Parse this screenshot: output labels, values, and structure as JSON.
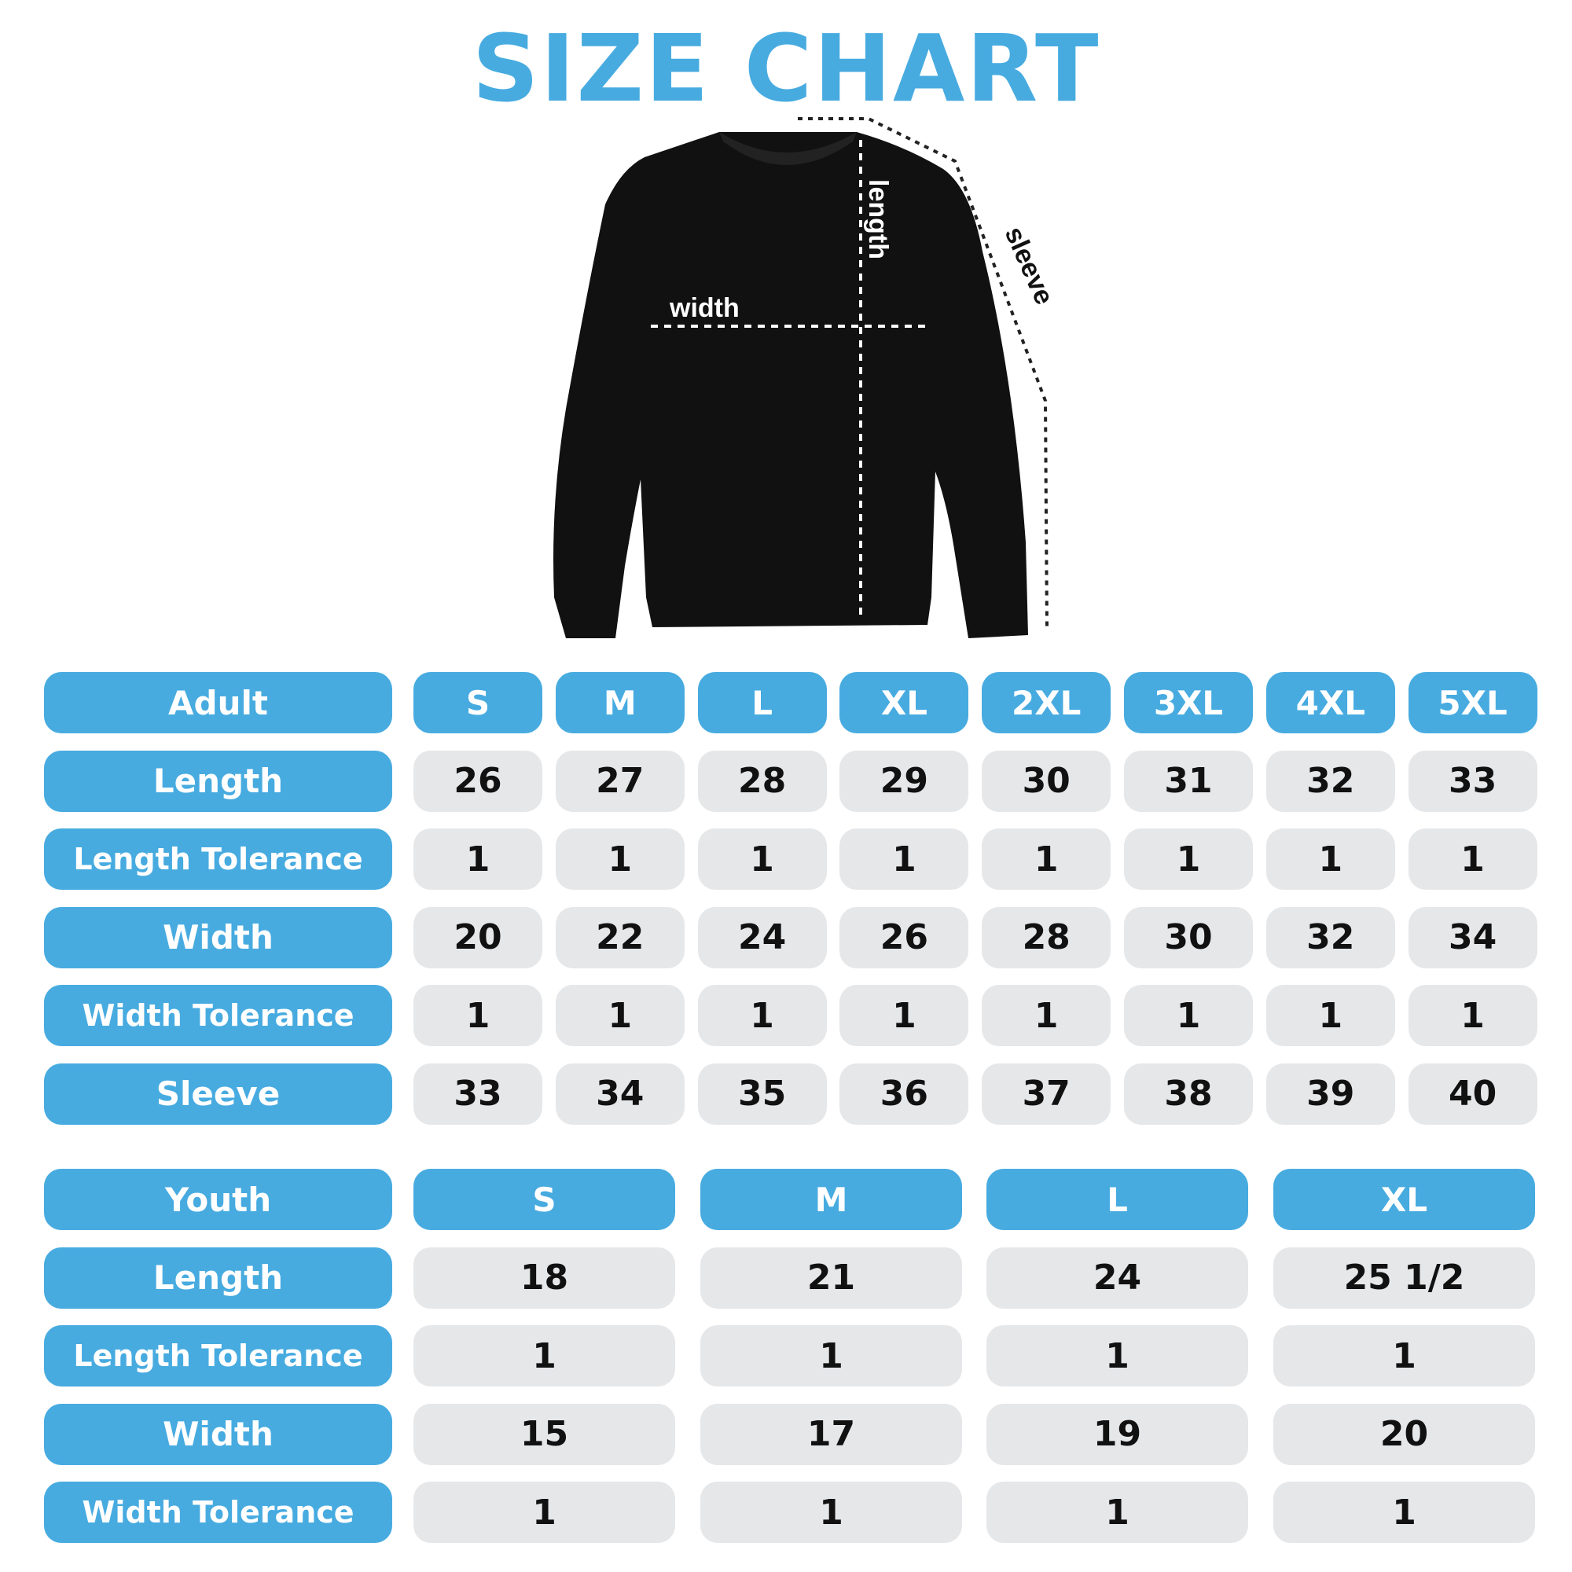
{
  "title": "SIZE CHART",
  "diagram_labels": {
    "width": "width",
    "length": "length",
    "sleeve": "sleeve"
  },
  "colors": {
    "accent": "#47abe0",
    "cell": "#e6e7e9",
    "garment": "#111111"
  },
  "adult": {
    "header": "Adult",
    "sizes": [
      "S",
      "M",
      "L",
      "XL",
      "2XL",
      "3XL",
      "4XL",
      "5XL"
    ],
    "rows": [
      {
        "label": "Length",
        "values": [
          "26",
          "27",
          "28",
          "29",
          "30",
          "31",
          "32",
          "33"
        ]
      },
      {
        "label": "Length Tolerance",
        "values": [
          "1",
          "1",
          "1",
          "1",
          "1",
          "1",
          "1",
          "1"
        ]
      },
      {
        "label": "Width",
        "values": [
          "20",
          "22",
          "24",
          "26",
          "28",
          "30",
          "32",
          "34"
        ]
      },
      {
        "label": "Width Tolerance",
        "values": [
          "1",
          "1",
          "1",
          "1",
          "1",
          "1",
          "1",
          "1"
        ]
      },
      {
        "label": "Sleeve",
        "values": [
          "33",
          "34",
          "35",
          "36",
          "37",
          "38",
          "39",
          "40"
        ]
      }
    ]
  },
  "youth": {
    "header": "Youth",
    "sizes": [
      "S",
      "M",
      "L",
      "XL"
    ],
    "rows": [
      {
        "label": "Length",
        "values": [
          "18",
          "21",
          "24",
          "25 1/2"
        ]
      },
      {
        "label": "Length Tolerance",
        "values": [
          "1",
          "1",
          "1",
          "1"
        ]
      },
      {
        "label": "Width",
        "values": [
          "15",
          "17",
          "19",
          "20"
        ]
      },
      {
        "label": "Width Tolerance",
        "values": [
          "1",
          "1",
          "1",
          "1"
        ]
      }
    ]
  }
}
